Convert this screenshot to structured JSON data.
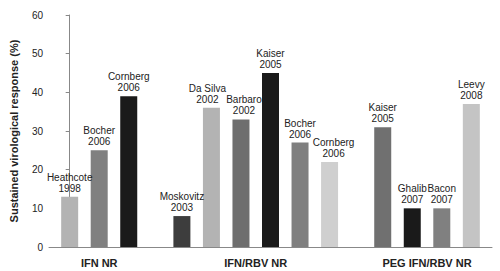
{
  "chart_data": {
    "type": "bar",
    "ylabel": "Sustained virological response (%)",
    "groups": [
      {
        "name": "IFN NR",
        "labels": [
          "Heathcote\n1998",
          "Bocher\n2006",
          "Cornberg\n2006"
        ],
        "values": [
          13,
          25,
          39
        ],
        "colors": [
          "#b3b3b3",
          "#808080",
          "#1a1a1a"
        ]
      },
      {
        "name": "IFN/RBV NR",
        "labels": [
          "Moskovitz\n2003",
          "Da Silva\n2002",
          "Barbaro\n2002",
          "Kaiser\n2005",
          "Bocher\n2006",
          "Cornberg\n2006"
        ],
        "values": [
          8,
          36,
          33,
          45,
          27,
          22
        ],
        "colors": [
          "#3d3d3d",
          "#b3b3b3",
          "#6e6e6e",
          "#1a1a1a",
          "#7f7f7f",
          "#cfcfcf"
        ]
      },
      {
        "name": "PEG IFN/RBV NR",
        "labels": [
          "Kaiser\n2005",
          "Ghalib\n2007",
          "Bacon\n2007",
          "Leevy\n2008"
        ],
        "values": [
          31,
          10,
          10,
          37
        ],
        "colors": [
          "#707070",
          "#1a1a1a",
          "#808080",
          "#c4c4c4"
        ]
      }
    ],
    "ylim": [
      0,
      60
    ],
    "yticks": [
      0,
      10,
      20,
      30,
      40,
      50,
      60
    ],
    "grid": false
  }
}
